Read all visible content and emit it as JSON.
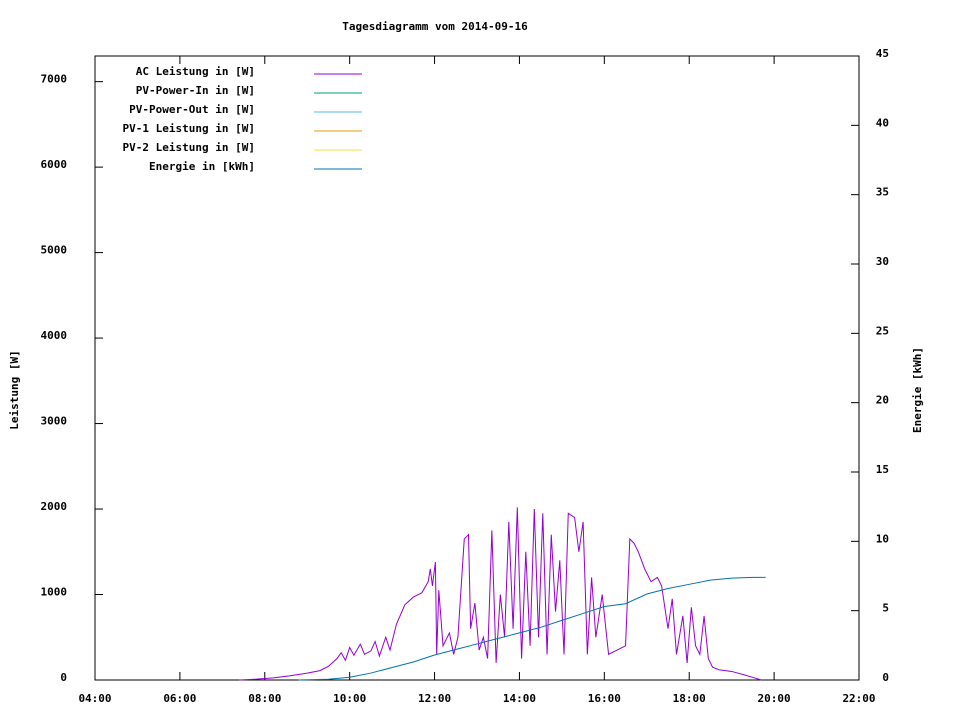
{
  "chart_data": {
    "type": "line",
    "title": "Tagesdiagramm vom 2014-09-16",
    "ylabel": "Leistung [W]",
    "y2label": "Energie [kWh]",
    "xlim": [
      4,
      22
    ],
    "xticks": [
      {
        "value": 4,
        "label": "04:00"
      },
      {
        "value": 6,
        "label": "06:00"
      },
      {
        "value": 8,
        "label": "08:00"
      },
      {
        "value": 10,
        "label": "10:00"
      },
      {
        "value": 12,
        "label": "12:00"
      },
      {
        "value": 14,
        "label": "14:00"
      },
      {
        "value": 16,
        "label": "16:00"
      },
      {
        "value": 18,
        "label": "18:00"
      },
      {
        "value": 20,
        "label": "20:00"
      },
      {
        "value": 22,
        "label": "22:00"
      }
    ],
    "ylim": [
      0,
      7300
    ],
    "yticks": [
      0,
      1000,
      2000,
      3000,
      4000,
      5000,
      6000,
      7000
    ],
    "y2lim": [
      0,
      45
    ],
    "y2ticks": [
      0,
      5,
      10,
      15,
      20,
      25,
      30,
      35,
      40,
      45
    ],
    "legend": "top-left",
    "series": [
      {
        "name": "AC Leistung in [W]",
        "color": "#9400d3",
        "x": [
          7.4,
          7.8,
          8.2,
          8.6,
          9.0,
          9.3,
          9.5,
          9.7,
          9.8,
          9.9,
          10.0,
          10.1,
          10.25,
          10.35,
          10.5,
          10.6,
          10.7,
          10.85,
          10.95,
          11.1,
          11.3,
          11.5,
          11.7,
          11.85,
          11.9,
          11.95,
          12.02,
          12.05,
          12.1,
          12.2,
          12.35,
          12.45,
          12.55,
          12.7,
          12.8,
          12.85,
          12.95,
          13.05,
          13.15,
          13.25,
          13.35,
          13.45,
          13.55,
          13.65,
          13.75,
          13.85,
          13.95,
          14.05,
          14.15,
          14.25,
          14.35,
          14.45,
          14.55,
          14.65,
          14.75,
          14.85,
          14.95,
          15.05,
          15.15,
          15.3,
          15.4,
          15.5,
          15.6,
          15.7,
          15.8,
          15.95,
          16.1,
          16.3,
          16.5,
          16.6,
          16.7,
          16.8,
          16.95,
          17.1,
          17.25,
          17.35,
          17.5,
          17.6,
          17.7,
          17.85,
          17.95,
          18.05,
          18.15,
          18.25,
          18.35,
          18.45,
          18.55,
          18.7,
          19.0,
          19.3,
          19.5,
          19.7
        ],
        "values": [
          0,
          10,
          25,
          50,
          80,
          110,
          160,
          250,
          320,
          230,
          380,
          290,
          420,
          300,
          340,
          450,
          280,
          500,
          350,
          650,
          880,
          970,
          1020,
          1150,
          1300,
          1100,
          1380,
          300,
          1050,
          400,
          550,
          300,
          500,
          1650,
          1700,
          600,
          900,
          350,
          500,
          250,
          1750,
          200,
          1000,
          500,
          1850,
          600,
          2020,
          250,
          1500,
          400,
          2000,
          500,
          1950,
          300,
          1700,
          800,
          1400,
          300,
          1950,
          1900,
          1500,
          1850,
          300,
          1200,
          500,
          1000,
          300,
          350,
          400,
          1650,
          1600,
          1500,
          1300,
          1150,
          1200,
          1100,
          600,
          950,
          300,
          750,
          200,
          850,
          400,
          300,
          750,
          250,
          150,
          120,
          100,
          60,
          30,
          0
        ]
      },
      {
        "name": "PV-Power-In in [W]",
        "color": "#009e73"
      },
      {
        "name": "PV-Power-Out in [W]",
        "color": "#56b4e9"
      },
      {
        "name": "PV-1 Leistung in [W]",
        "color": "#e69f00"
      },
      {
        "name": "PV-2 Leistung in [W]",
        "color": "#f0e442"
      },
      {
        "name": "Energie in [kWh]",
        "color": "#0072b2",
        "axis": "y2",
        "x": [
          8.8,
          9.5,
          10,
          10.5,
          11,
          11.5,
          12,
          12.5,
          13,
          13.5,
          14,
          14.5,
          15,
          15.5,
          16,
          16.5,
          17,
          17.5,
          18,
          18.5,
          19,
          19.5,
          19.8
        ],
        "values": [
          0,
          0.05,
          0.2,
          0.5,
          0.9,
          1.3,
          1.8,
          2.2,
          2.6,
          3.0,
          3.4,
          3.8,
          4.3,
          4.8,
          5.3,
          5.5,
          6.2,
          6.6,
          6.9,
          7.2,
          7.35,
          7.4,
          7.4
        ]
      }
    ]
  }
}
